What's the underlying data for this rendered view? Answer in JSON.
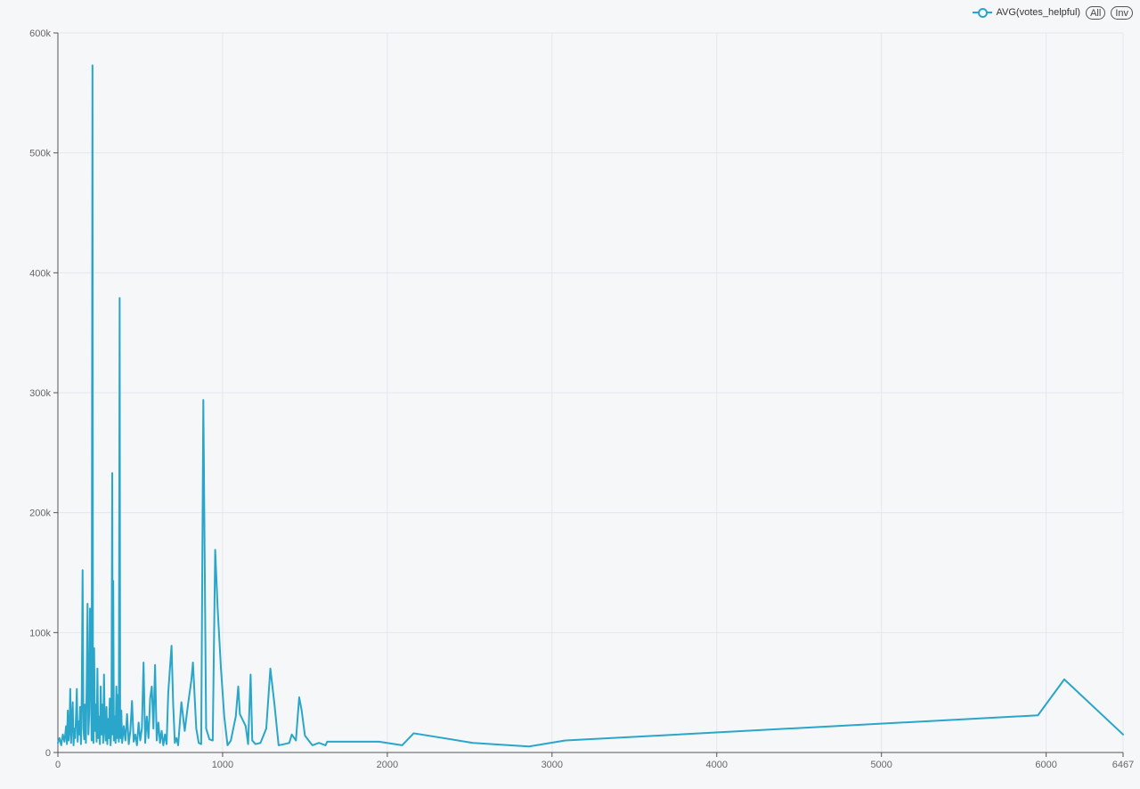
{
  "legend": {
    "series_label": "AVG(votes_helpful)",
    "all_button": "All",
    "inv_button": "Inv"
  },
  "colors": {
    "series": "#29a6c9",
    "grid": "#e3e7ee",
    "axis": "#555555",
    "tick_text": "#666666"
  },
  "chart_data": {
    "type": "line",
    "xlim": [
      0,
      6467
    ],
    "ylim": [
      0,
      600000
    ],
    "x_ticks": [
      0,
      1000,
      2000,
      3000,
      4000,
      5000,
      6000,
      6467
    ],
    "x_tick_labels": [
      "0",
      "1000",
      "2000",
      "3000",
      "4000",
      "5000",
      "6000",
      "6467"
    ],
    "y_ticks": [
      0,
      100000,
      200000,
      300000,
      400000,
      500000,
      600000
    ],
    "y_tick_labels": [
      "0",
      "100k",
      "200k",
      "300k",
      "400k",
      "500k",
      "600k"
    ],
    "grid": true,
    "legend_position": "top-right",
    "series": [
      {
        "name": "AVG(votes_helpful)",
        "points": [
          [
            0,
            8000
          ],
          [
            10,
            12000
          ],
          [
            20,
            6000
          ],
          [
            30,
            15000
          ],
          [
            40,
            9000
          ],
          [
            50,
            22000
          ],
          [
            55,
            7000
          ],
          [
            60,
            35000
          ],
          [
            65,
            10000
          ],
          [
            70,
            18000
          ],
          [
            75,
            53000
          ],
          [
            80,
            8000
          ],
          [
            85,
            25000
          ],
          [
            90,
            42000
          ],
          [
            95,
            6000
          ],
          [
            100,
            20000
          ],
          [
            105,
            12000
          ],
          [
            110,
            30000
          ],
          [
            115,
            53000
          ],
          [
            120,
            9000
          ],
          [
            125,
            26000
          ],
          [
            130,
            15000
          ],
          [
            135,
            38000
          ],
          [
            140,
            7000
          ],
          [
            145,
            48000
          ],
          [
            150,
            152000
          ],
          [
            155,
            20000
          ],
          [
            160,
            11000
          ],
          [
            165,
            40000
          ],
          [
            170,
            8000
          ],
          [
            175,
            58000
          ],
          [
            180,
            124000
          ],
          [
            185,
            15000
          ],
          [
            190,
            32000
          ],
          [
            195,
            120000
          ],
          [
            200,
            60000
          ],
          [
            205,
            10000
          ],
          [
            210,
            573000
          ],
          [
            213,
            25000
          ],
          [
            216,
            8000
          ],
          [
            220,
            87000
          ],
          [
            225,
            18000
          ],
          [
            230,
            40000
          ],
          [
            235,
            9000
          ],
          [
            240,
            70000
          ],
          [
            245,
            12000
          ],
          [
            250,
            30000
          ],
          [
            255,
            7000
          ],
          [
            260,
            55000
          ],
          [
            265,
            15000
          ],
          [
            270,
            40000
          ],
          [
            275,
            8000
          ],
          [
            280,
            65000
          ],
          [
            285,
            20000
          ],
          [
            290,
            10000
          ],
          [
            295,
            38000
          ],
          [
            300,
            7000
          ],
          [
            305,
            28000
          ],
          [
            310,
            12000
          ],
          [
            315,
            45000
          ],
          [
            320,
            6000
          ],
          [
            325,
            20000
          ],
          [
            330,
            233000
          ],
          [
            333,
            15000
          ],
          [
            336,
            143000
          ],
          [
            340,
            10000
          ],
          [
            345,
            30000
          ],
          [
            350,
            8000
          ],
          [
            355,
            55000
          ],
          [
            360,
            12000
          ],
          [
            365,
            48000
          ],
          [
            370,
            9000
          ],
          [
            375,
            379000
          ],
          [
            378,
            20000
          ],
          [
            381,
            12000
          ],
          [
            385,
            35000
          ],
          [
            390,
            8000
          ],
          [
            400,
            22000
          ],
          [
            410,
            10000
          ],
          [
            420,
            32000
          ],
          [
            430,
            7000
          ],
          [
            440,
            18000
          ],
          [
            450,
            43000
          ],
          [
            460,
            9000
          ],
          [
            470,
            15000
          ],
          [
            480,
            6000
          ],
          [
            490,
            25000
          ],
          [
            500,
            10000
          ],
          [
            510,
            20000
          ],
          [
            520,
            75000
          ],
          [
            530,
            8000
          ],
          [
            540,
            30000
          ],
          [
            550,
            12000
          ],
          [
            560,
            45000
          ],
          [
            570,
            55000
          ],
          [
            580,
            20000
          ],
          [
            590,
            73000
          ],
          [
            600,
            10000
          ],
          [
            610,
            25000
          ],
          [
            620,
            8000
          ],
          [
            630,
            18000
          ],
          [
            640,
            6000
          ],
          [
            650,
            15000
          ],
          [
            660,
            7000
          ],
          [
            670,
            50000
          ],
          [
            690,
            89000
          ],
          [
            700,
            40000
          ],
          [
            710,
            8000
          ],
          [
            720,
            12000
          ],
          [
            730,
            6000
          ],
          [
            750,
            42000
          ],
          [
            770,
            18000
          ],
          [
            790,
            40000
          ],
          [
            810,
            60000
          ],
          [
            820,
            75000
          ],
          [
            840,
            20000
          ],
          [
            855,
            8000
          ],
          [
            870,
            7000
          ],
          [
            883,
            294000
          ],
          [
            900,
            20000
          ],
          [
            920,
            11000
          ],
          [
            940,
            10000
          ],
          [
            955,
            169000
          ],
          [
            970,
            120000
          ],
          [
            990,
            70000
          ],
          [
            1010,
            30000
          ],
          [
            1030,
            6000
          ],
          [
            1050,
            10000
          ],
          [
            1080,
            30000
          ],
          [
            1095,
            55000
          ],
          [
            1105,
            32000
          ],
          [
            1140,
            22000
          ],
          [
            1155,
            7000
          ],
          [
            1170,
            65000
          ],
          [
            1180,
            10000
          ],
          [
            1200,
            7000
          ],
          [
            1230,
            8000
          ],
          [
            1265,
            20000
          ],
          [
            1290,
            70000
          ],
          [
            1315,
            40000
          ],
          [
            1340,
            6000
          ],
          [
            1375,
            7000
          ],
          [
            1405,
            8000
          ],
          [
            1420,
            15000
          ],
          [
            1445,
            10000
          ],
          [
            1465,
            46000
          ],
          [
            1480,
            35000
          ],
          [
            1500,
            14000
          ],
          [
            1545,
            6000
          ],
          [
            1585,
            8000
          ],
          [
            1625,
            6000
          ],
          [
            1635,
            9000
          ],
          [
            1950,
            9000
          ],
          [
            2090,
            6000
          ],
          [
            2160,
            16000
          ],
          [
            2520,
            8000
          ],
          [
            2860,
            5000
          ],
          [
            3080,
            10000
          ],
          [
            5950,
            31000
          ],
          [
            6110,
            61000
          ],
          [
            6467,
            15000
          ]
        ]
      }
    ]
  }
}
